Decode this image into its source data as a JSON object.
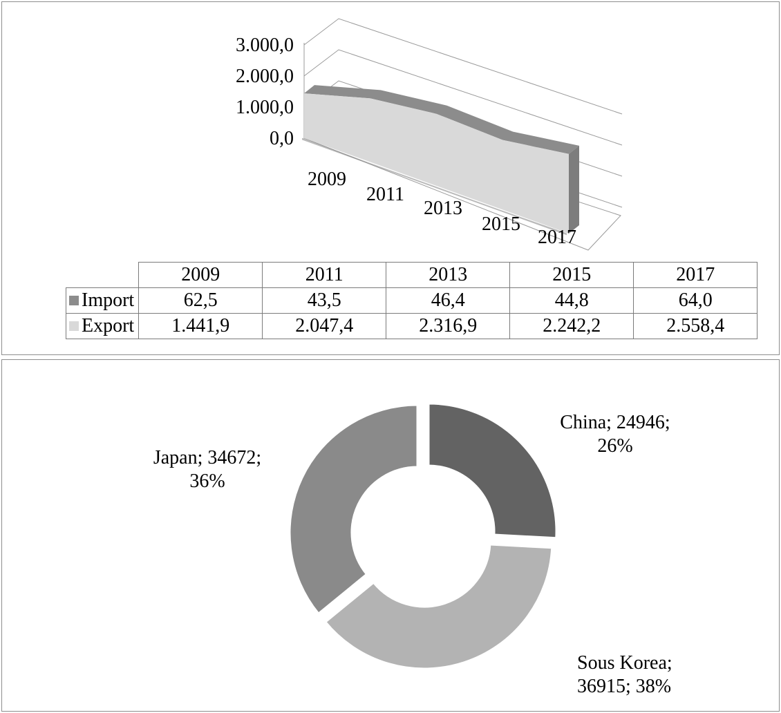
{
  "chart_data": [
    {
      "type": "area",
      "x": [
        "2009",
        "2011",
        "2013",
        "2015",
        "2017"
      ],
      "yticks": [
        "3.000,0",
        "2.000,0",
        "1.000,0",
        "0,0"
      ],
      "ylim": [
        0,
        3000
      ],
      "series": [
        {
          "name": "Import",
          "color": "#8c8c8c",
          "values": [
            62.5,
            43.5,
            46.4,
            44.8,
            64.0
          ],
          "labels": [
            "62,5",
            "43,5",
            "46,4",
            "44,8",
            "64,0"
          ]
        },
        {
          "name": "Export",
          "color": "#d9d9d9",
          "values": [
            1441.9,
            2047.4,
            2316.9,
            2242.2,
            2558.4
          ],
          "labels": [
            "1.441,9",
            "2.047,4",
            "2.316,9",
            "2.242,2",
            "2.558,4"
          ]
        }
      ],
      "data_table": true,
      "grid": true
    },
    {
      "type": "pie",
      "style": "doughnut",
      "slices": [
        {
          "label": "China",
          "value": 24946,
          "percent": 26,
          "color": "#636363",
          "text_line1": "China; 24946;",
          "text_line2": "26%"
        },
        {
          "label": "Sous Korea",
          "value": 36915,
          "percent": 38,
          "color": "#b3b3b3",
          "text_line1": "Sous Korea;",
          "text_line2": "36915; 38%"
        },
        {
          "label": "Japan",
          "value": 34672,
          "percent": 36,
          "color": "#8a8a8a",
          "text_line1": "Japan; 34672;",
          "text_line2": "36%"
        }
      ]
    }
  ]
}
